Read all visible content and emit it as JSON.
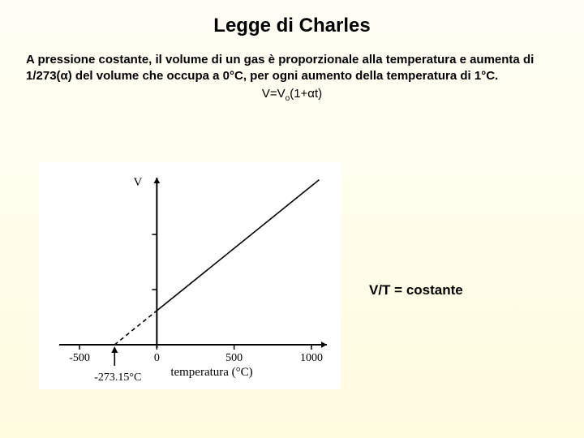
{
  "title": "Legge di Charles",
  "paragraph": "A pressione costante, il volume di un gas è proporzionale alla temperatura e aumenta di 1/273(α) del volume che occupa a 0°C, per ogni aumento della temperatura di 1°C.",
  "formula_prefix": "V=V",
  "formula_sub": "o",
  "formula_suffix": "(1+αt)",
  "equation_right": "V/T = costante",
  "chart": {
    "type": "line",
    "x_axis_label": "temperatura (°C)",
    "y_axis_label": "V",
    "x_ticks": [
      -500,
      0,
      500,
      1000
    ],
    "x_range": [
      -600,
      1100
    ],
    "y_range": [
      0,
      1
    ],
    "absolute_zero_label": "-273.15°C",
    "absolute_zero_x": -273.15,
    "line_solid_from_x": 0,
    "line_intercept_x": -273.15,
    "colors": {
      "background": "#ffffff",
      "axis": "#000000",
      "line": "#000000",
      "dash": "#000000",
      "tick_text": "#000000"
    },
    "stroke_width_axis": 2,
    "stroke_width_line": 1.6,
    "arrow_size": 7,
    "dash_pattern": "5,4"
  }
}
